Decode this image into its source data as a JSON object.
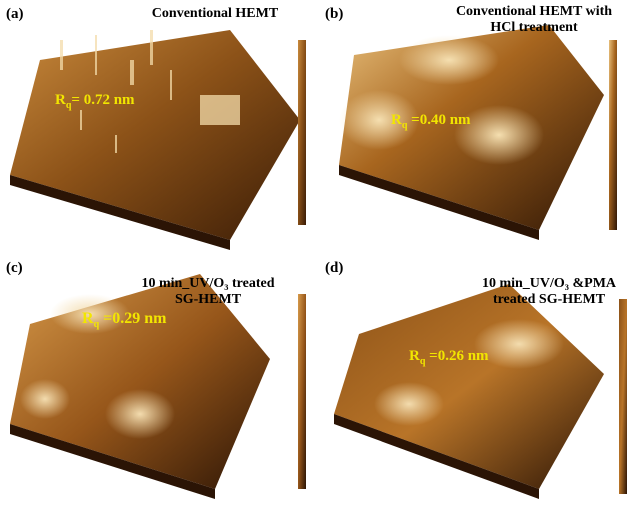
{
  "panels": [
    {
      "letter": "(a)",
      "title": [
        "Conventional HEMT"
      ],
      "rq_prefix": "R",
      "rq_sub": "q",
      "rq_value": "= 0.72 nm"
    },
    {
      "letter": "(b)",
      "title": [
        "Conventional HEMT with",
        "HCl treatment"
      ],
      "rq_prefix": "R",
      "rq_sub": "q",
      "rq_value": " =0.40 nm"
    },
    {
      "letter": "(c)",
      "title": [
        "10 min_UV/O₃ treated",
        "SG-HEMT"
      ],
      "rq_prefix": "R",
      "rq_sub": "q",
      "rq_value": " =0.29 nm"
    },
    {
      "letter": "(d)",
      "title": [
        "10 min_UV/O₃ &PMA",
        "treated SG-HEMT"
      ],
      "rq_prefix": "R",
      "rq_sub": "q",
      "rq_value": " =0.26 nm"
    }
  ],
  "colors": {
    "surface_dark": "#2b1405",
    "surface_mid": "#9a5a1a",
    "surface_light": "#f4dcaa",
    "rq_text": "#f2e600"
  }
}
